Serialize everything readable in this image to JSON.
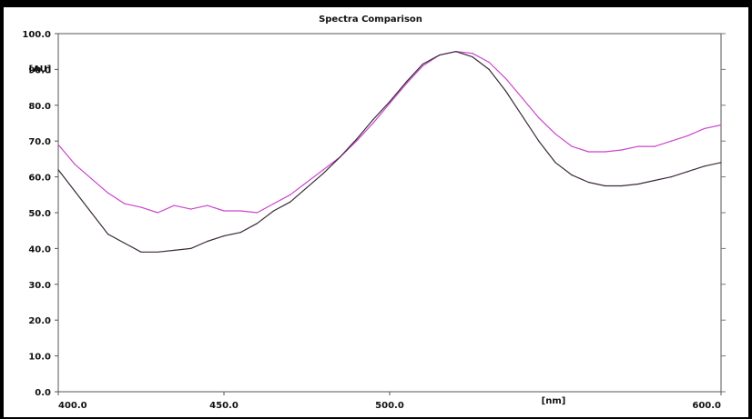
{
  "chart_data": {
    "type": "line",
    "title": "Spectra Comparison",
    "xlabel": "[nm]",
    "ylabel": "[AU]",
    "xlim": [
      400,
      600
    ],
    "ylim": [
      0,
      100
    ],
    "x_ticks": [
      "400.0",
      "450.0",
      "500.0",
      "600.0"
    ],
    "x_tick_values": [
      400,
      450,
      500,
      600
    ],
    "y_ticks": [
      "0.0",
      "10.0",
      "20.0",
      "30.0",
      "40.0",
      "50.0",
      "60.0",
      "70.0",
      "80.0",
      "90.0",
      "100.0"
    ],
    "y_tick_values": [
      0,
      10,
      20,
      30,
      40,
      50,
      60,
      70,
      80,
      90,
      100
    ],
    "grid": false,
    "series": [
      {
        "color": "#cc44cc",
        "points": [
          [
            400,
            69
          ],
          [
            405,
            63.5
          ],
          [
            410,
            59.5
          ],
          [
            415,
            55.5
          ],
          [
            420,
            52.5
          ],
          [
            425,
            51.5
          ],
          [
            430,
            50
          ],
          [
            435,
            52
          ],
          [
            440,
            51
          ],
          [
            445,
            52
          ],
          [
            450,
            50.5
          ],
          [
            455,
            50.5
          ],
          [
            460,
            50
          ],
          [
            465,
            52.5
          ],
          [
            470,
            55
          ],
          [
            475,
            58.5
          ],
          [
            480,
            62
          ],
          [
            485,
            65.5
          ],
          [
            490,
            70
          ],
          [
            495,
            75
          ],
          [
            500,
            80.5
          ],
          [
            505,
            86
          ],
          [
            510,
            91
          ],
          [
            515,
            94
          ],
          [
            520,
            95
          ],
          [
            525,
            94.5
          ],
          [
            530,
            92
          ],
          [
            535,
            87.5
          ],
          [
            540,
            82
          ],
          [
            545,
            76.5
          ],
          [
            550,
            72
          ],
          [
            555,
            68.5
          ],
          [
            560,
            67
          ],
          [
            565,
            67
          ],
          [
            570,
            67.5
          ],
          [
            575,
            68.5
          ],
          [
            580,
            68.5
          ],
          [
            585,
            70
          ],
          [
            590,
            71.5
          ],
          [
            595,
            73.5
          ],
          [
            600,
            74.5
          ]
        ]
      },
      {
        "color": "#3a2a3a",
        "points": [
          [
            400,
            62
          ],
          [
            405,
            56
          ],
          [
            410,
            50
          ],
          [
            415,
            44
          ],
          [
            420,
            41.5
          ],
          [
            425,
            39
          ],
          [
            430,
            39
          ],
          [
            435,
            39.5
          ],
          [
            440,
            40
          ],
          [
            445,
            42
          ],
          [
            450,
            43.5
          ],
          [
            455,
            44.5
          ],
          [
            460,
            47
          ],
          [
            465,
            50.5
          ],
          [
            470,
            53
          ],
          [
            475,
            57
          ],
          [
            480,
            61
          ],
          [
            485,
            65.5
          ],
          [
            490,
            70.5
          ],
          [
            495,
            76
          ],
          [
            500,
            81
          ],
          [
            505,
            86.5
          ],
          [
            510,
            91.5
          ],
          [
            515,
            94
          ],
          [
            520,
            95
          ],
          [
            525,
            93.5
          ],
          [
            530,
            90
          ],
          [
            535,
            84
          ],
          [
            540,
            77
          ],
          [
            545,
            70
          ],
          [
            550,
            64
          ],
          [
            555,
            60.5
          ],
          [
            560,
            58.5
          ],
          [
            565,
            57.5
          ],
          [
            570,
            57.5
          ],
          [
            575,
            58
          ],
          [
            580,
            59
          ],
          [
            585,
            60
          ],
          [
            590,
            61.5
          ],
          [
            595,
            63
          ],
          [
            600,
            64
          ]
        ]
      }
    ]
  }
}
